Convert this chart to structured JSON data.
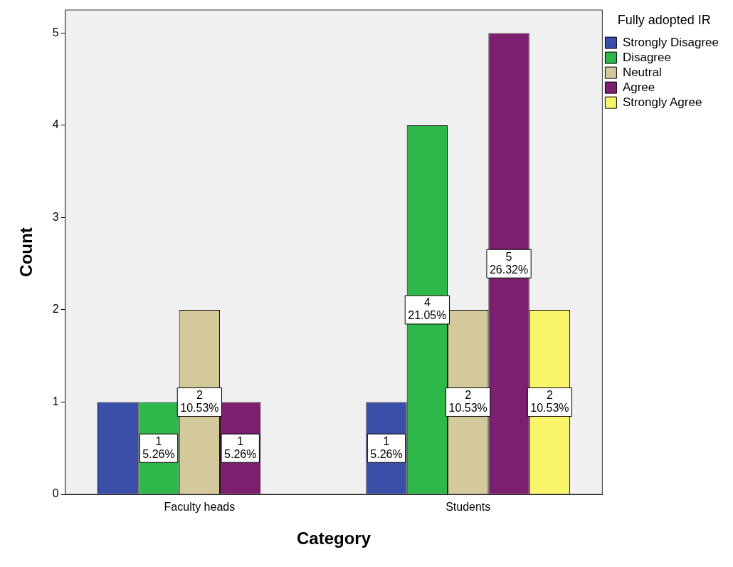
{
  "chart_data": {
    "type": "bar",
    "xlabel": "Category",
    "ylabel": "Count",
    "legend_title": "Fully adopted IR",
    "legend": "top right",
    "grid": false,
    "categories": [
      "Faculty heads",
      "Students"
    ],
    "ylim": [
      0,
      5.25
    ],
    "yticks": [
      0,
      1,
      2,
      3,
      4,
      5
    ],
    "series": [
      {
        "name": "Strongly Disagree",
        "color": "#3c4fa8",
        "values": [
          1,
          1
        ],
        "value_labels": [
          null,
          "1\n5.26%"
        ]
      },
      {
        "name": "Disagree",
        "color": "#2fb84a",
        "values": [
          1,
          4
        ],
        "value_labels": [
          "1\n5.26%",
          "4\n21.05%"
        ]
      },
      {
        "name": "Neutral",
        "color": "#d4c99a",
        "values": [
          2,
          2
        ],
        "value_labels": [
          "2\n10.53%",
          "2\n10.53%"
        ]
      },
      {
        "name": "Agree",
        "color": "#7b1f6e",
        "values": [
          1,
          5
        ],
        "value_labels": [
          "1\n5.26%",
          "5\n26.32%"
        ]
      },
      {
        "name": "Strongly Agree",
        "color": "#f9f56a",
        "values": [
          null,
          2
        ],
        "value_labels": [
          null,
          "2\n10.53%"
        ]
      }
    ]
  }
}
